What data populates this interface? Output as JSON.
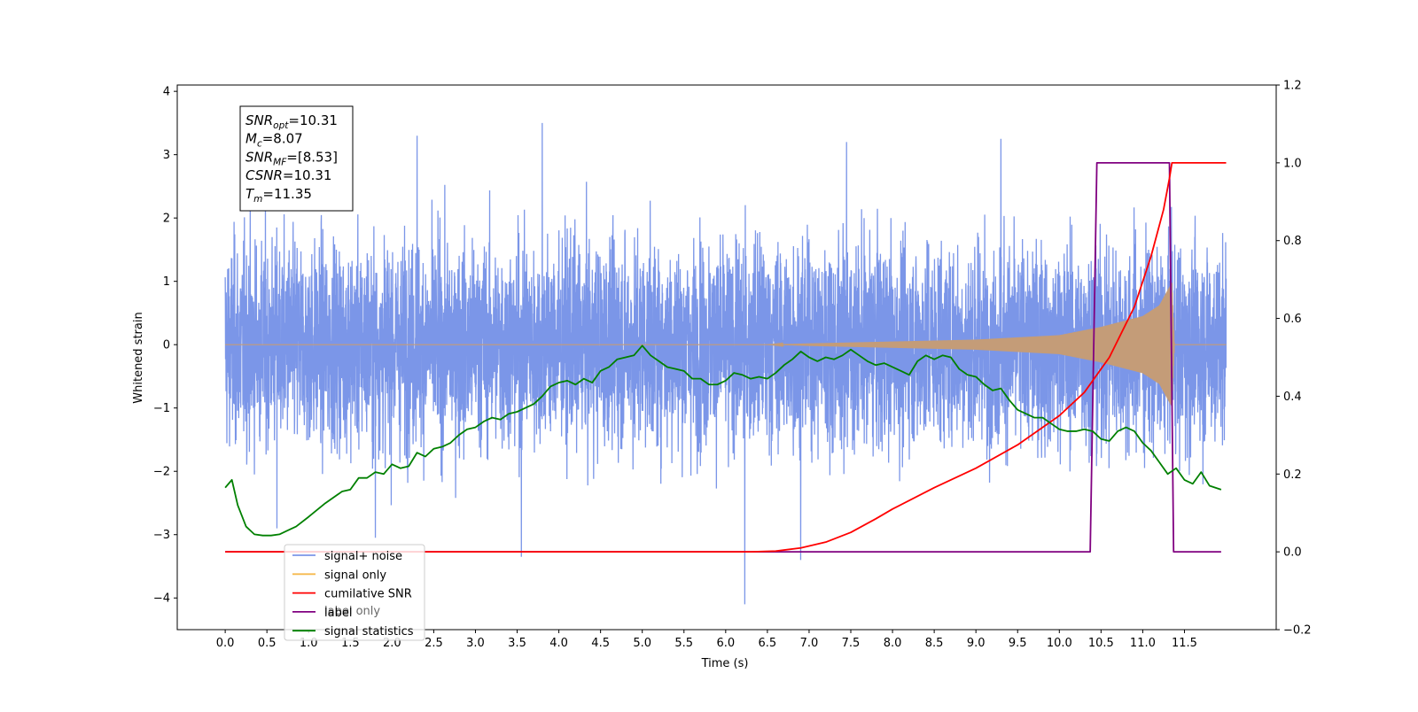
{
  "chart_data": {
    "type": "line",
    "xlabel": "Time (s)",
    "ylabel": "Whitened strain",
    "xlim": [
      -0.575,
      12.6
    ],
    "ylim": [
      -4.5,
      4.1
    ],
    "y2lim": [
      -0.2,
      1.2
    ],
    "x_ticks": [
      "0.0",
      "0.5",
      "1.0",
      "1.5",
      "2.0",
      "2.5",
      "3.0",
      "3.5",
      "4.0",
      "4.5",
      "5.0",
      "5.5",
      "6.0",
      "6.5",
      "7.0",
      "7.5",
      "8.0",
      "8.5",
      "9.0",
      "9.5",
      "10.0",
      "10.5",
      "11.0",
      "11.5"
    ],
    "y_ticks": [
      "4",
      "3",
      "2",
      "1",
      "0",
      "−1",
      "−2",
      "−3",
      "−4"
    ],
    "y2_ticks": [
      "1.2",
      "1.0",
      "0.8",
      "0.6",
      "0.4",
      "0.2",
      "0.0",
      "−0.2"
    ],
    "grid": false,
    "legend_position": "lower-left",
    "info_box": [
      {
        "sym": "SNR",
        "sub": "opt",
        "val": "=10.31"
      },
      {
        "sym": "M",
        "sub": "c",
        "val": "=8.07"
      },
      {
        "sym": "SNR",
        "sub": "MF",
        "val": "=[8.53]"
      },
      {
        "sym": "CSNR",
        "sub": "",
        "val": "=10.31"
      },
      {
        "sym": "T",
        "sub": "m",
        "val": "=11.35"
      }
    ],
    "series": [
      {
        "name": "signal+ noise",
        "axis": "left",
        "color": "#7b96e8",
        "noise_sigma": 0.8,
        "x_range": [
          0.0,
          12.0
        ],
        "spikes": [
          [
            3.8,
            3.5
          ],
          [
            2.3,
            3.3
          ],
          [
            6.23,
            -4.1
          ],
          [
            3.55,
            -3.35
          ],
          [
            6.9,
            -3.4
          ],
          [
            1.8,
            -3.05
          ],
          [
            9.3,
            3.25
          ],
          [
            7.45,
            3.2
          ],
          [
            0.62,
            -2.9
          ]
        ]
      },
      {
        "name": "signal only",
        "axis": "left",
        "color": "#f6b94d",
        "overlap_color": "#c49c78",
        "envelope": [
          [
            0.0,
            0.0
          ],
          [
            6.5,
            0.0
          ],
          [
            7.0,
            0.02
          ],
          [
            8.0,
            0.05
          ],
          [
            9.0,
            0.08
          ],
          [
            10.0,
            0.15
          ],
          [
            10.5,
            0.28
          ],
          [
            11.0,
            0.45
          ],
          [
            11.2,
            0.62
          ],
          [
            11.35,
            0.98
          ],
          [
            11.38,
            0.0
          ],
          [
            12.0,
            0.0
          ]
        ]
      },
      {
        "name": "cumilative SNR",
        "axis": "right",
        "color": "#ff0000",
        "x": [
          0.0,
          6.0,
          6.3,
          6.6,
          6.9,
          7.2,
          7.5,
          7.8,
          8.0,
          8.5,
          9.0,
          9.5,
          10.0,
          10.3,
          10.6,
          10.9,
          11.1,
          11.25,
          11.32,
          11.35,
          12.0
        ],
        "y": [
          0.0,
          0.0,
          0.0,
          0.002,
          0.01,
          0.025,
          0.05,
          0.085,
          0.11,
          0.165,
          0.215,
          0.275,
          0.35,
          0.41,
          0.5,
          0.63,
          0.76,
          0.88,
          0.96,
          1.0,
          1.0
        ]
      },
      {
        "name": "label",
        "axis": "right",
        "color": "#800080",
        "x": [
          0.0,
          10.37,
          10.45,
          11.32,
          11.37,
          11.94
        ],
        "y": [
          0.0,
          0.0,
          1.0,
          1.0,
          0.0,
          0.0
        ]
      },
      {
        "name": "label only",
        "axis": "right",
        "color": "#800080",
        "hidden": true
      },
      {
        "name": "signal statistics",
        "axis": "right",
        "color": "#008000",
        "x": [
          0.0,
          0.08,
          0.15,
          0.25,
          0.35,
          0.45,
          0.55,
          0.65,
          0.75,
          0.85,
          1.0,
          1.2,
          1.4,
          1.5,
          1.6,
          1.7,
          1.8,
          1.9,
          2.0,
          2.1,
          2.2,
          2.3,
          2.4,
          2.5,
          2.6,
          2.7,
          2.8,
          2.9,
          3.0,
          3.1,
          3.2,
          3.3,
          3.4,
          3.5,
          3.6,
          3.7,
          3.8,
          3.9,
          4.0,
          4.1,
          4.2,
          4.3,
          4.4,
          4.5,
          4.6,
          4.7,
          4.8,
          4.9,
          5.0,
          5.1,
          5.2,
          5.3,
          5.4,
          5.5,
          5.6,
          5.7,
          5.8,
          5.9,
          6.0,
          6.1,
          6.2,
          6.3,
          6.4,
          6.5,
          6.6,
          6.7,
          6.8,
          6.9,
          7.0,
          7.1,
          7.2,
          7.3,
          7.4,
          7.5,
          7.6,
          7.7,
          7.8,
          7.9,
          8.0,
          8.1,
          8.2,
          8.3,
          8.4,
          8.5,
          8.6,
          8.7,
          8.8,
          8.9,
          9.0,
          9.1,
          9.2,
          9.3,
          9.4,
          9.5,
          9.6,
          9.7,
          9.8,
          9.9,
          10.0,
          10.1,
          10.2,
          10.3,
          10.4,
          10.5,
          10.6,
          10.7,
          10.8,
          10.9,
          11.0,
          11.1,
          11.2,
          11.3,
          11.4,
          11.5,
          11.6,
          11.7,
          11.8,
          11.94
        ],
        "y": [
          0.165,
          0.185,
          0.12,
          0.065,
          0.045,
          0.042,
          0.042,
          0.045,
          0.055,
          0.065,
          0.09,
          0.125,
          0.155,
          0.16,
          0.19,
          0.19,
          0.205,
          0.2,
          0.225,
          0.215,
          0.22,
          0.255,
          0.245,
          0.265,
          0.27,
          0.28,
          0.3,
          0.315,
          0.32,
          0.335,
          0.345,
          0.34,
          0.355,
          0.36,
          0.37,
          0.38,
          0.4,
          0.425,
          0.435,
          0.44,
          0.43,
          0.445,
          0.435,
          0.465,
          0.475,
          0.495,
          0.5,
          0.505,
          0.53,
          0.505,
          0.49,
          0.475,
          0.47,
          0.465,
          0.445,
          0.445,
          0.43,
          0.43,
          0.44,
          0.46,
          0.455,
          0.445,
          0.45,
          0.445,
          0.46,
          0.48,
          0.495,
          0.515,
          0.5,
          0.49,
          0.5,
          0.495,
          0.505,
          0.52,
          0.505,
          0.49,
          0.48,
          0.485,
          0.475,
          0.465,
          0.455,
          0.49,
          0.505,
          0.495,
          0.505,
          0.5,
          0.47,
          0.455,
          0.45,
          0.43,
          0.415,
          0.42,
          0.39,
          0.365,
          0.355,
          0.345,
          0.345,
          0.33,
          0.315,
          0.31,
          0.31,
          0.315,
          0.31,
          0.29,
          0.285,
          0.31,
          0.32,
          0.31,
          0.28,
          0.26,
          0.23,
          0.2,
          0.215,
          0.185,
          0.175,
          0.205,
          0.17,
          0.16
        ]
      }
    ]
  }
}
